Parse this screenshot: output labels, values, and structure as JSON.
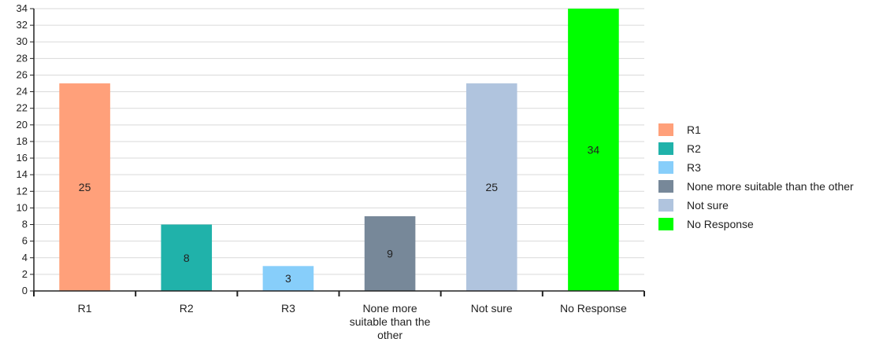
{
  "chart_data": {
    "type": "bar",
    "title": "",
    "xlabel": "",
    "ylabel": "",
    "ylim": [
      0,
      34
    ],
    "y_ticks": [
      0,
      2,
      4,
      6,
      8,
      10,
      12,
      14,
      16,
      18,
      20,
      22,
      24,
      26,
      28,
      30,
      32,
      34
    ],
    "grid": true,
    "legend_position": "right",
    "categories": [
      {
        "name": "R1",
        "lines": [
          "R1"
        ],
        "value": 25,
        "color": "#FFA07A"
      },
      {
        "name": "R2",
        "lines": [
          "R2"
        ],
        "value": 8,
        "color": "#20B2AA"
      },
      {
        "name": "R3",
        "lines": [
          "R3"
        ],
        "value": 3,
        "color": "#87CEFA"
      },
      {
        "name": "None more suitable than the other",
        "lines": [
          "None more",
          "suitable than the",
          "other"
        ],
        "value": 9,
        "color": "#778899"
      },
      {
        "name": "Not sure",
        "lines": [
          "Not sure"
        ],
        "value": 25,
        "color": "#B0C4DE"
      },
      {
        "name": "No Response",
        "lines": [
          "No Response"
        ],
        "value": 34,
        "color": "#00FF00"
      }
    ],
    "legend": [
      {
        "label": "R1",
        "color": "#FFA07A"
      },
      {
        "label": "R2",
        "color": "#20B2AA"
      },
      {
        "label": "R3",
        "color": "#87CEFA"
      },
      {
        "label": "None more suitable than the other",
        "color": "#778899"
      },
      {
        "label": "Not sure",
        "color": "#B0C4DE"
      },
      {
        "label": "No Response",
        "color": "#00FF00"
      }
    ]
  }
}
